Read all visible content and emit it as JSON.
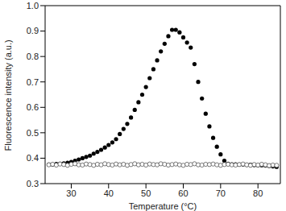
{
  "chart_data": {
    "type": "scatter",
    "x_label": "Temperature (°C)",
    "y_label": "Fluorescence intensity (a.u.)",
    "xlim": [
      23,
      86
    ],
    "xticks": [
      30,
      40,
      50,
      60,
      70,
      80
    ],
    "ylim": [
      0.3,
      1
    ],
    "yticks": [
      0.3,
      0.4,
      0.5,
      0.6,
      0.7,
      0.8,
      0.9,
      {
        "value": 1,
        "label": "1.0"
      }
    ],
    "grid": false,
    "x": [
      24,
      25,
      26,
      27,
      28,
      29,
      30,
      31,
      32,
      33,
      34,
      35,
      36,
      37,
      38,
      39,
      40,
      41,
      42,
      43,
      44,
      45,
      46,
      47,
      48,
      49,
      50,
      51,
      52,
      53,
      54,
      55,
      56,
      57,
      58,
      59,
      60,
      61,
      62,
      63,
      64,
      65,
      66,
      67,
      68,
      69,
      70,
      71,
      72,
      73,
      74,
      75,
      76,
      77,
      78,
      79,
      80,
      81,
      82,
      83,
      84,
      85
    ],
    "series": [
      {
        "color": "#000000",
        "marker": "filled_circle",
        "values": [
          0.375,
          0.375,
          0.377,
          0.378,
          0.38,
          0.382,
          0.385,
          0.39,
          0.395,
          0.4,
          0.405,
          0.41,
          0.418,
          0.425,
          0.433,
          0.442,
          0.452,
          0.462,
          0.475,
          0.495,
          0.515,
          0.535,
          0.56,
          0.59,
          0.62,
          0.65,
          0.68,
          0.715,
          0.75,
          0.785,
          0.82,
          0.85,
          0.88,
          0.905,
          0.905,
          0.895,
          0.875,
          0.855,
          0.835,
          0.77,
          0.7,
          0.635,
          0.575,
          0.525,
          0.48,
          0.445,
          0.415,
          0.39,
          0.378,
          0.376,
          0.376,
          0.375,
          0.375,
          0.374,
          0.374,
          0.373,
          0.372,
          0.372,
          0.371,
          0.37,
          0.368,
          0.366
        ]
      },
      {
        "color": "#555555",
        "marker": "open_circle",
        "values": [
          0.374,
          0.376,
          0.373,
          0.377,
          0.375,
          0.372,
          0.376,
          0.378,
          0.374,
          0.373,
          0.377,
          0.375,
          0.372,
          0.376,
          0.374,
          0.378,
          0.375,
          0.373,
          0.377,
          0.374,
          0.376,
          0.372,
          0.375,
          0.378,
          0.374,
          0.376,
          0.373,
          0.377,
          0.375,
          0.374,
          0.378,
          0.376,
          0.373,
          0.375,
          0.377,
          0.374,
          0.372,
          0.376,
          0.375,
          0.378,
          0.374,
          0.373,
          0.376,
          0.375,
          0.377,
          0.374,
          0.372,
          0.375,
          0.376,
          0.374,
          0.373,
          0.375,
          0.377,
          0.374,
          0.372,
          0.375,
          0.373,
          0.376,
          0.374,
          0.371,
          0.373,
          0.372
        ]
      }
    ]
  }
}
